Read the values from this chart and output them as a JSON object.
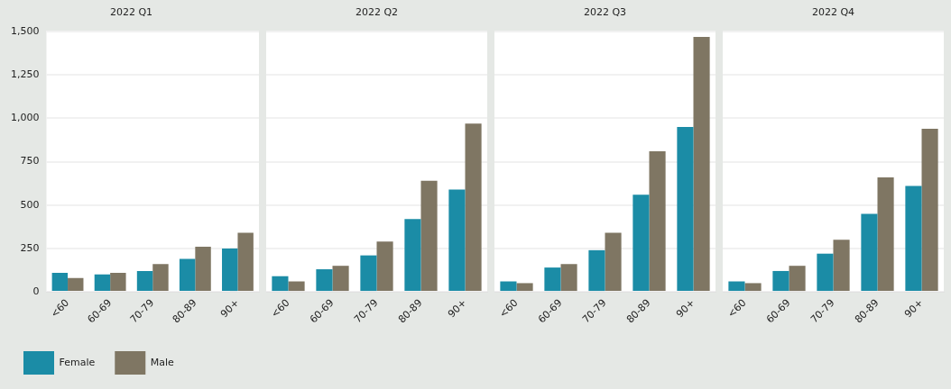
{
  "chart_data": [
    {
      "type": "bar",
      "title": "2022 Q1",
      "categories": [
        "<60",
        "60-69",
        "70-79",
        "80-89",
        "90+"
      ],
      "series": [
        {
          "name": "Female",
          "color": "#1b8ca6",
          "values": [
            110,
            100,
            120,
            190,
            250
          ]
        },
        {
          "name": "Male",
          "color": "#7f7663",
          "values": [
            80,
            110,
            160,
            260,
            340
          ]
        }
      ],
      "ylim": [
        0,
        1500
      ],
      "yticks": [
        0,
        250,
        500,
        750,
        {
          "value": 1000,
          "label": "1,000"
        },
        {
          "value": 1250,
          "label": "1,250"
        },
        {
          "value": 1500,
          "label": "1,500"
        }
      ],
      "grid": "y",
      "legend": "bottom left"
    },
    {
      "type": "bar",
      "title": "2022 Q2",
      "categories": [
        "<60",
        "60-69",
        "70-79",
        "80-89",
        "90+"
      ],
      "series": [
        {
          "color": "#1b8ca6",
          "values": [
            90,
            130,
            210,
            420,
            590
          ]
        },
        {
          "color": "#7f7663",
          "values": [
            60,
            150,
            290,
            640,
            970
          ]
        }
      ],
      "ylim": [
        0,
        1500
      ],
      "yticks": [
        0,
        250,
        500,
        750,
        1000,
        1250,
        1500
      ],
      "grid": "y",
      "tick_labels": "x"
    },
    {
      "type": "bar",
      "title": "2022 Q3",
      "categories": [
        "<60",
        "60-69",
        "70-79",
        "80-89",
        "90+"
      ],
      "series": [
        {
          "color": "#1b8ca6",
          "values": [
            60,
            140,
            240,
            560,
            950
          ]
        },
        {
          "color": "#7f7663",
          "values": [
            50,
            160,
            340,
            810,
            1470
          ]
        }
      ],
      "ylim": [
        0,
        1500
      ],
      "yticks": [
        0,
        250,
        500,
        750,
        1000,
        1250,
        1500
      ],
      "grid": "y",
      "tick_labels": "x"
    },
    {
      "type": "bar",
      "title": "2022 Q4",
      "categories": [
        "<60",
        "60-69",
        "70-79",
        "80-89",
        "90+"
      ],
      "series": [
        {
          "color": "#1b8ca6",
          "values": [
            60,
            120,
            220,
            450,
            610
          ]
        },
        {
          "color": "#7f7663",
          "values": [
            50,
            150,
            300,
            660,
            940
          ]
        }
      ],
      "ylim": [
        0,
        1500
      ],
      "yticks": [
        0,
        250,
        500,
        750,
        1000,
        1250,
        1500
      ],
      "grid": "y",
      "tick_labels": "x"
    }
  ]
}
